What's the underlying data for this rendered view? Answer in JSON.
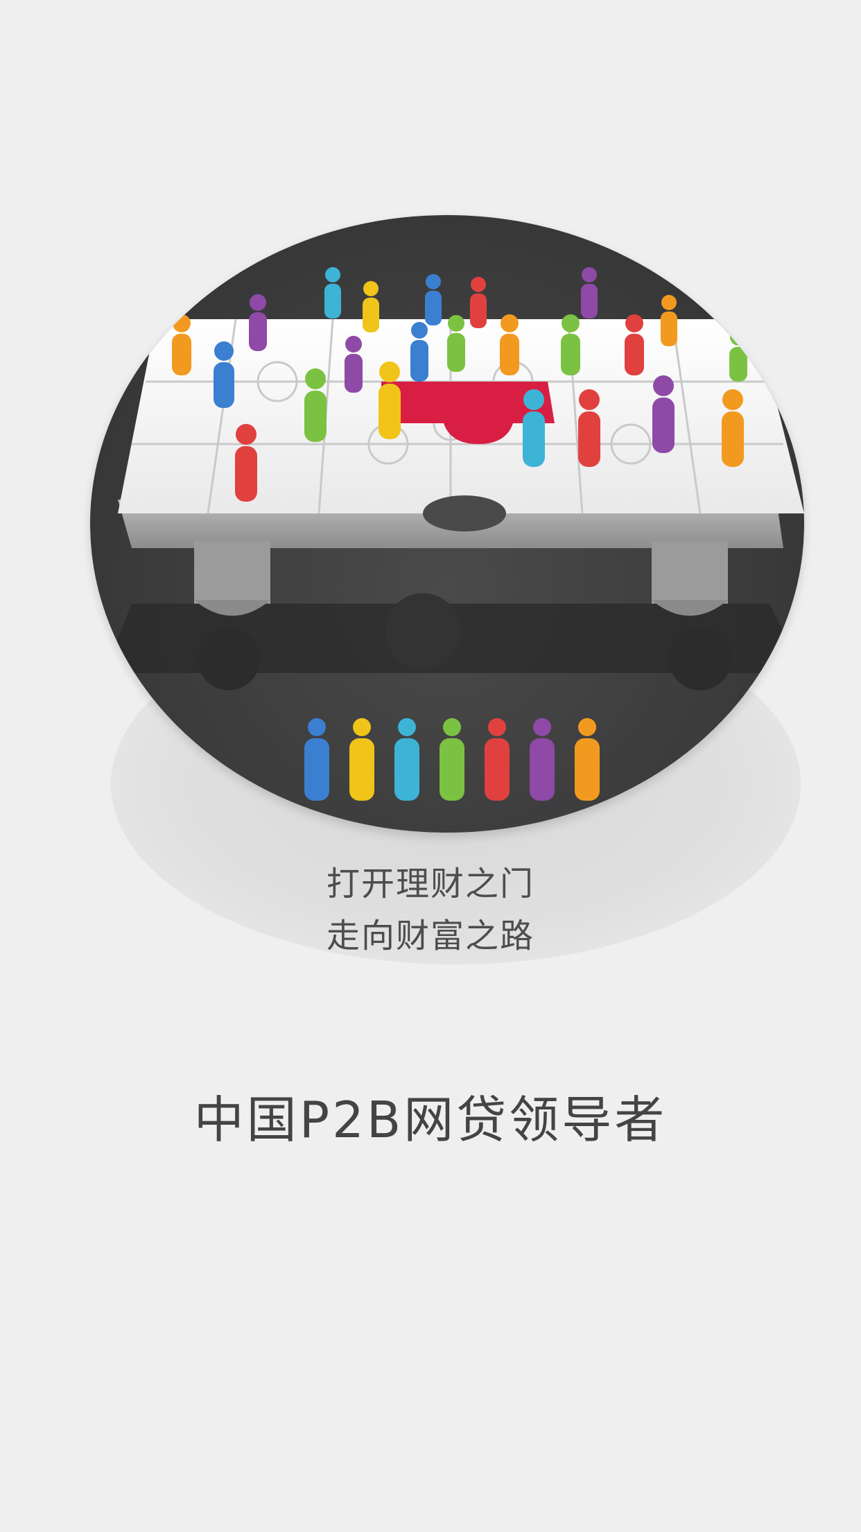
{
  "splash": {
    "tagline_line1": "打开理财之门",
    "tagline_line2": "走向财富之路",
    "slogan": "中国P2B网贷领导者"
  },
  "illustration": {
    "icon": "puzzle-people-icon",
    "figure_colors": [
      "#3b7fd1",
      "#f0c419",
      "#3db4d6",
      "#7cc242",
      "#e0413f",
      "#8e4aa6",
      "#f29a1f"
    ],
    "highlight_color": "#d81e42"
  }
}
